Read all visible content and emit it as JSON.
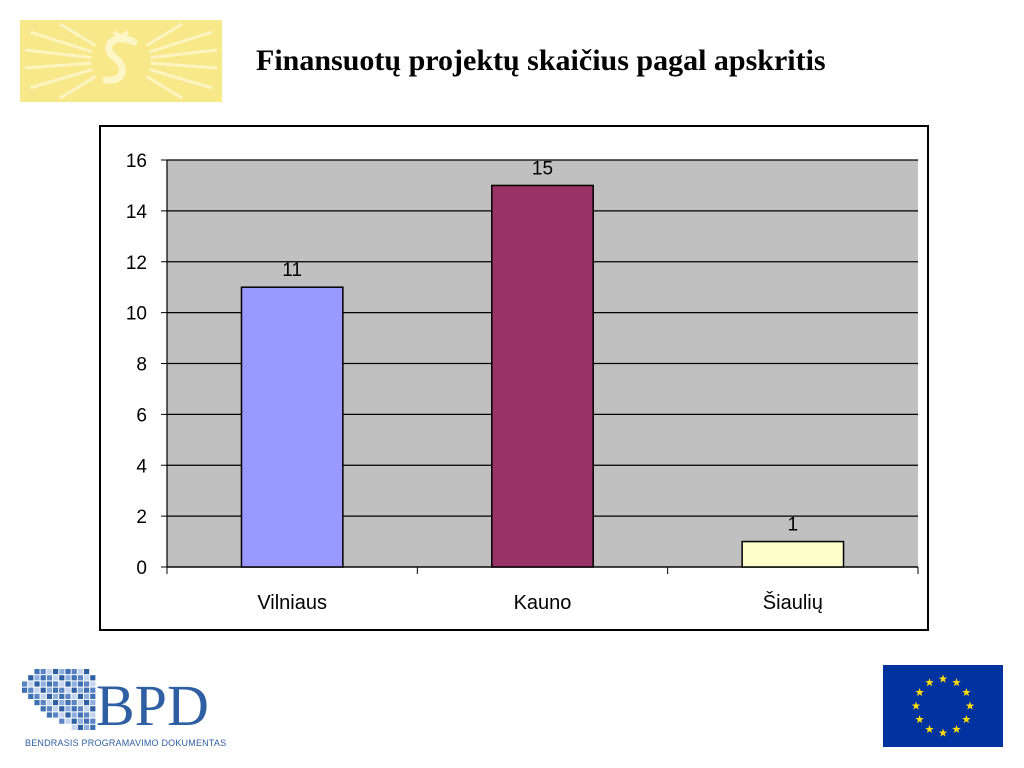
{
  "slide": {
    "title": "Finansuotų projektų skaičius pagal apskritis"
  },
  "bpd_logo": {
    "text": "BPD",
    "caption": "BENDRASIS PROGRAMAVIMO DOKUMENTAS"
  },
  "colors": {
    "plot_background": "#c0c0c0",
    "top_logo_background": "#f7e88a",
    "bpd_blue": "#2e5fa3",
    "eu_blue": "#0033a0",
    "eu_star": "#ffdd00"
  },
  "chart_data": {
    "type": "bar",
    "title": "",
    "xlabel": "",
    "ylabel": "",
    "categories": [
      "Vilniaus",
      "Kauno",
      "Šiaulių"
    ],
    "values": [
      11,
      15,
      1
    ],
    "data_labels": [
      "11",
      "15",
      "1"
    ],
    "bar_colors": [
      "#9999ff",
      "#993366",
      "#ffffcc"
    ],
    "ylim": [
      0,
      16
    ],
    "yticks": [
      0,
      2,
      4,
      6,
      8,
      10,
      12,
      14,
      16
    ],
    "ytick_labels": [
      "0",
      "2",
      "4",
      "6",
      "8",
      "10",
      "12",
      "14",
      "16"
    ],
    "grid": true,
    "legend": "none"
  }
}
